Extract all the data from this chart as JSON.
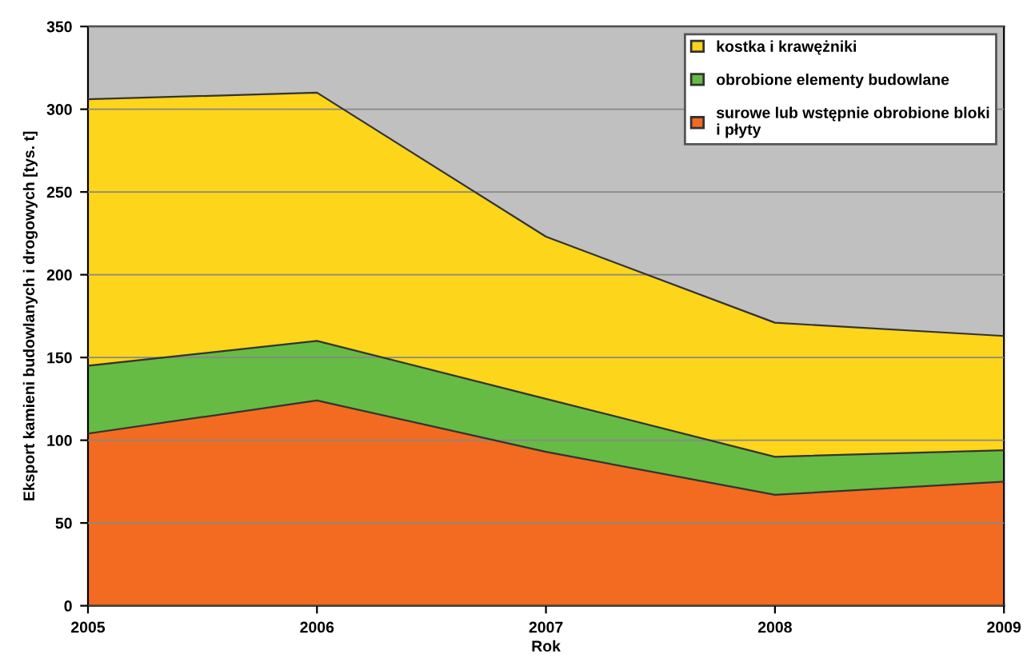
{
  "chart_data": {
    "type": "area",
    "stacked": true,
    "xlabel": "Rok",
    "ylabel": "Eksport kamieni budowlanych i drogowych [tys. t]",
    "x": [
      2005,
      2006,
      2007,
      2008,
      2009
    ],
    "series": [
      {
        "name": "surowe lub wstępnie obrobione bloki\ni płyty",
        "color": "#f26b21",
        "values": [
          104,
          124,
          93,
          67,
          75
        ]
      },
      {
        "name": "obrobione elementy budowlane",
        "color": "#66bb44",
        "values": [
          41,
          36,
          32,
          23,
          19
        ]
      },
      {
        "name": "kostka i krawężniki",
        "color": "#fdd51a",
        "values": [
          161,
          150,
          98,
          81,
          69
        ]
      }
    ],
    "xlim": [
      2005,
      2009
    ],
    "xticks": [
      2005,
      2006,
      2007,
      2008,
      2009
    ],
    "ylim": [
      0,
      350
    ],
    "yticks": [
      0,
      50,
      100,
      150,
      200,
      250,
      300,
      350
    ],
    "grid": "y",
    "legend": "top right"
  }
}
